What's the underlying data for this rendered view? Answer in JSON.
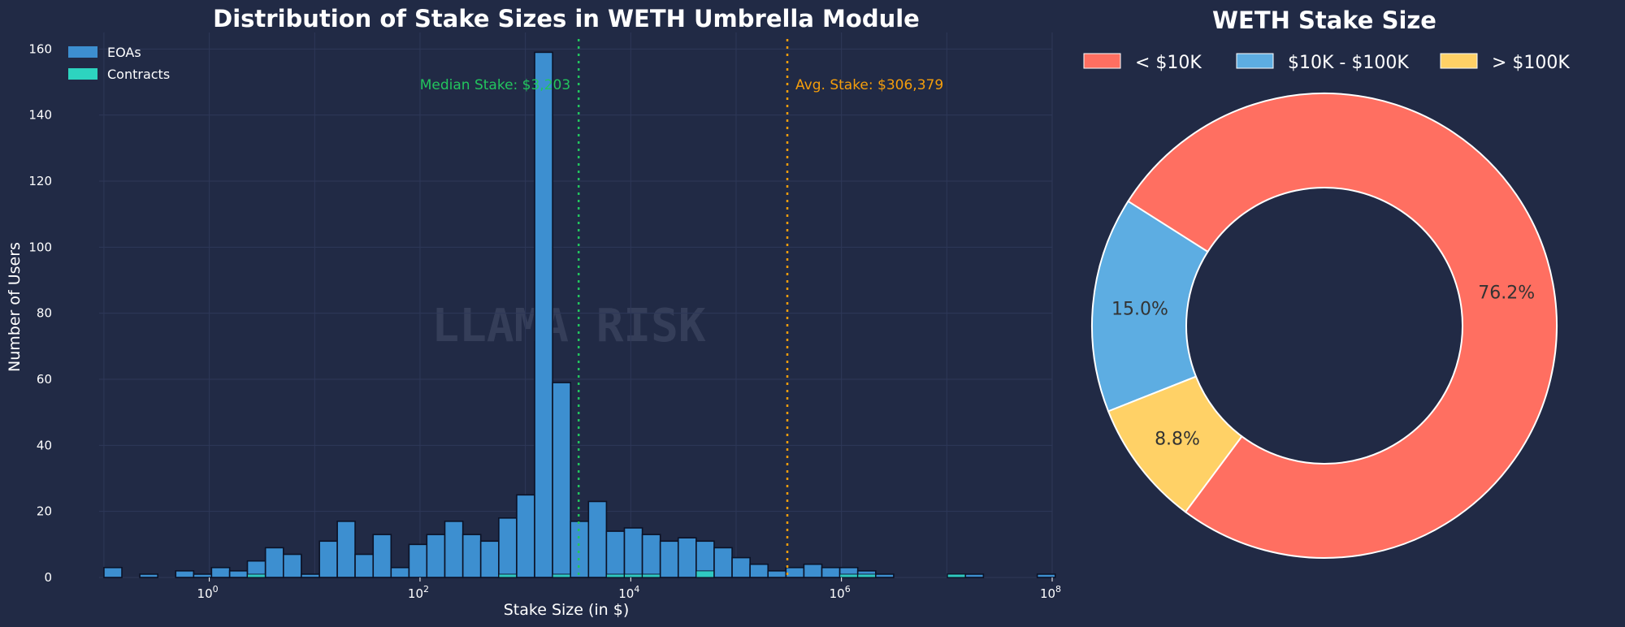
{
  "colors": {
    "background": "#212a45",
    "eoa": "#3d8fd0",
    "contract": "#2dd4bf",
    "median_line": "#22c55e",
    "avg_line": "#f59e0b",
    "pie_small": "#ff6f61",
    "pie_mid": "#5dade2",
    "pie_large": "#ffd166"
  },
  "watermark": "LLAMA RISK",
  "chart_data": [
    {
      "type": "bar",
      "title": "Distribution of Stake Sizes in WETH Umbrella Module",
      "xlabel": "Stake Size (in $)",
      "ylabel": "Number of Users",
      "xscale": "log",
      "xlim": [
        0.09,
        100000000
      ],
      "ylim": [
        0,
        165
      ],
      "x_ticks": [
        {
          "value": 1,
          "base": "10",
          "exp": "0"
        },
        {
          "value": 100,
          "base": "10",
          "exp": "2"
        },
        {
          "value": 10000,
          "base": "10",
          "exp": "4"
        },
        {
          "value": 1000000,
          "base": "10",
          "exp": "6"
        },
        {
          "value": 100000000,
          "base": "10",
          "exp": "8"
        }
      ],
      "y_ticks": [
        0,
        20,
        40,
        60,
        80,
        100,
        120,
        140,
        160
      ],
      "grid": true,
      "legend_position": "top-left",
      "bin_edges": [
        0.1,
        0.148,
        0.219,
        0.324,
        0.48,
        0.71,
        1.05,
        1.56,
        2.3,
        3.41,
        5.05,
        7.47,
        11.1,
        16.4,
        24.2,
        35.9,
        53.1,
        78.6,
        116,
        172,
        255,
        377,
        559,
        827,
        1224,
        1812,
        2683,
        3972,
        5880,
        8704,
        12886,
        19076,
        28240,
        41806,
        61890,
        91622,
        135636,
        200795,
        297256,
        440055,
        651455,
        964409,
        1427704,
        2113565,
        3128924,
        4632057,
        6857279,
        10151454,
        15028136,
        22247571,
        32935172,
        48756924,
        72179256,
        106853000
      ],
      "series": [
        {
          "name": "EOAs",
          "values": [
            3,
            0,
            1,
            0,
            2,
            1,
            3,
            2,
            5,
            9,
            7,
            1,
            11,
            17,
            7,
            13,
            3,
            10,
            13,
            17,
            13,
            11,
            18,
            25,
            159,
            59,
            17,
            23,
            14,
            15,
            13,
            11,
            12,
            11,
            9,
            6,
            4,
            2,
            3,
            4,
            3,
            3,
            2,
            1,
            0,
            0,
            0,
            1,
            1,
            0,
            0,
            0,
            1
          ]
        },
        {
          "name": "Contracts",
          "values": [
            0,
            0,
            0,
            0,
            0,
            0,
            0,
            0,
            1,
            0,
            0,
            0,
            0,
            0,
            0,
            0,
            0,
            0,
            0,
            0,
            0,
            0,
            1,
            0,
            0,
            1,
            0,
            0,
            1,
            1,
            1,
            0,
            0,
            2,
            0,
            0,
            0,
            0,
            0,
            0,
            0,
            1,
            1,
            0,
            0,
            0,
            0,
            1,
            0,
            0,
            0,
            0,
            0
          ]
        }
      ],
      "annotations": [
        {
          "label": "Median Stake: $3,203",
          "x": 3203,
          "color": "#22c55e"
        },
        {
          "label": "Avg. Stake: $306,379",
          "x": 306379,
          "color": "#f59e0b"
        }
      ]
    },
    {
      "type": "pie",
      "title": "WETH Stake Size",
      "donut": true,
      "legend_position": "top",
      "slices": [
        {
          "label": "< $10K",
          "value": 76.2,
          "display": "76.2%",
          "color": "#ff6f61"
        },
        {
          "label": "$10K - $100K",
          "value": 15.0,
          "display": "15.0%",
          "color": "#5dade2"
        },
        {
          "label": "> $100K",
          "value": 8.8,
          "display": "8.8%",
          "color": "#ffd166"
        }
      ]
    }
  ]
}
